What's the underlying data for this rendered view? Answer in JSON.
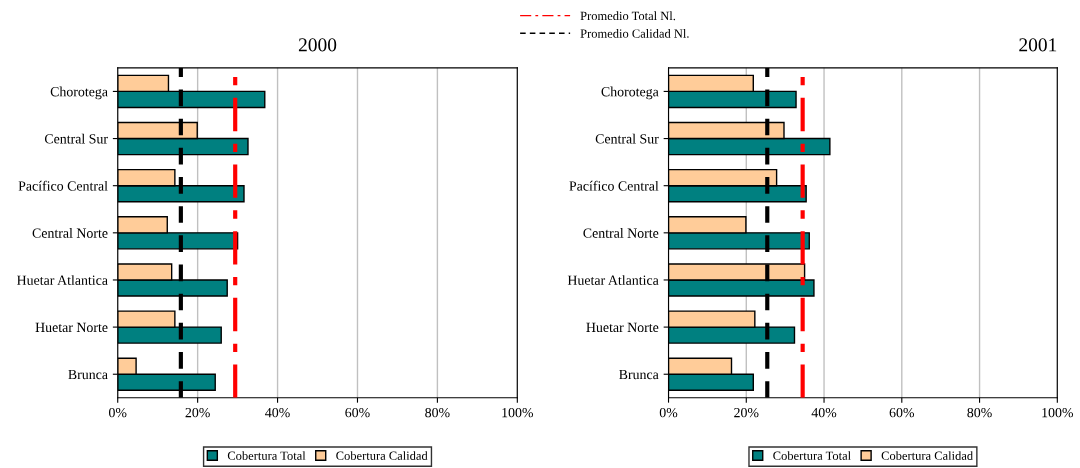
{
  "chart_data": [
    {
      "type": "bar",
      "orientation": "horizontal",
      "title": "2000",
      "categories": [
        "Chorotega",
        "Central Sur",
        "Pacífico Central",
        "Central Norte",
        "Huetar Atlantica",
        "Huetar Norte",
        "Brunca"
      ],
      "series": [
        {
          "name": "Cobertura Total",
          "color": "#008080",
          "values": [
            36.8,
            32.6,
            31.6,
            30.0,
            27.4,
            25.9,
            24.4
          ]
        },
        {
          "name": "Cobertura Calidad",
          "color": "#ffcc99",
          "values": [
            12.7,
            19.9,
            14.3,
            12.4,
            13.5,
            14.3,
            4.6
          ]
        }
      ],
      "xlim": [
        0,
        100
      ],
      "xticks": [
        {
          "value": 0,
          "label": "0%"
        },
        {
          "value": 20,
          "label": "20%"
        },
        {
          "value": 40,
          "label": "40%"
        },
        {
          "value": 60,
          "label": "60%"
        },
        {
          "value": 80,
          "label": "80%"
        },
        {
          "value": 100,
          "label": "100%"
        }
      ],
      "grid": "x",
      "legend": "bottom",
      "ref_lines": [
        {
          "axis": "x",
          "value": 29.4,
          "label": "Promedio Total Nl.",
          "color": "#ff0000",
          "line_style": "dashdot"
        },
        {
          "axis": "x",
          "value": 15.8,
          "label": "Promedio Calidad Nl.",
          "color": "#000000",
          "line_style": "dashed"
        }
      ]
    },
    {
      "type": "bar",
      "orientation": "horizontal",
      "title": "2001",
      "categories": [
        "Chorotega",
        "Central Sur",
        "Pacífico Central",
        "Central Norte",
        "Huetar Atlantica",
        "Huetar Norte",
        "Brunca"
      ],
      "series": [
        {
          "name": "Cobertura Total",
          "color": "#008080",
          "values": [
            32.8,
            41.5,
            35.4,
            36.2,
            37.4,
            32.4,
            21.8
          ]
        },
        {
          "name": "Cobertura Calidad",
          "color": "#ffcc99",
          "values": [
            21.8,
            29.7,
            27.8,
            19.9,
            35.0,
            22.2,
            16.2
          ]
        }
      ],
      "xlim": [
        0,
        100
      ],
      "xticks": [
        {
          "value": 0,
          "label": "0%"
        },
        {
          "value": 20,
          "label": "20%"
        },
        {
          "value": 40,
          "label": "40%"
        },
        {
          "value": 60,
          "label": "60%"
        },
        {
          "value": 80,
          "label": "80%"
        },
        {
          "value": 100,
          "label": "100%"
        }
      ],
      "grid": "x",
      "legend": "bottom",
      "ref_lines": [
        {
          "axis": "x",
          "value": 34.5,
          "color": "#ff0000",
          "line_style": "dashdot"
        },
        {
          "axis": "x",
          "value": 25.4,
          "color": "#000000",
          "line_style": "dashed"
        }
      ]
    }
  ]
}
